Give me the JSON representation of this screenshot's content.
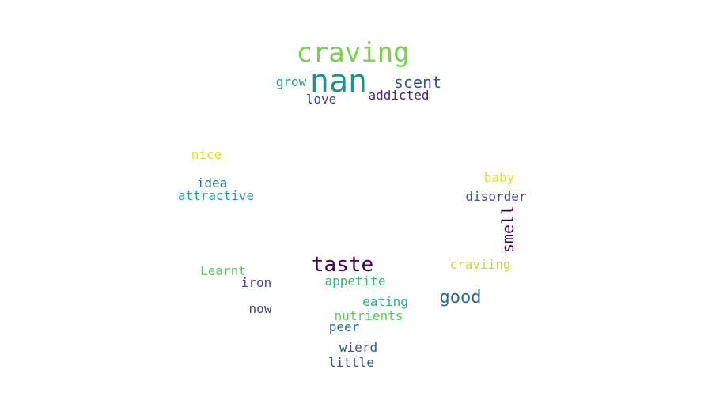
{
  "words": [
    {
      "text": "craving",
      "color": "#7ad151",
      "weight": 34
    },
    {
      "text": "nan",
      "color": "#21918c",
      "weight": 40
    },
    {
      "text": "grow",
      "color": "#2a9d7c",
      "weight": 16
    },
    {
      "text": "scent",
      "color": "#3b528b",
      "weight": 20
    },
    {
      "text": "love",
      "color": "#404688",
      "weight": 16
    },
    {
      "text": "addicted",
      "color": "#482878",
      "weight": 16
    },
    {
      "text": "nice",
      "color": "#dde318",
      "weight": 16
    },
    {
      "text": "idea",
      "color": "#2c728e",
      "weight": 16
    },
    {
      "text": "attractive",
      "color": "#22a884",
      "weight": 16
    },
    {
      "text": "baby",
      "color": "#e5e419",
      "weight": 16
    },
    {
      "text": "disorder",
      "color": "#414487",
      "weight": 16
    },
    {
      "text": "smell",
      "color": "#440154",
      "weight": 20,
      "vertical": true
    },
    {
      "text": "taste",
      "color": "#440154",
      "weight": 26
    },
    {
      "text": "Learnt",
      "color": "#5ec962",
      "weight": 16
    },
    {
      "text": "iron",
      "color": "#3e4a89",
      "weight": 16
    },
    {
      "text": "appetite",
      "color": "#35b779",
      "weight": 16
    },
    {
      "text": "craviing",
      "color": "#c2df23",
      "weight": 16
    },
    {
      "text": "good",
      "color": "#31688e",
      "weight": 22
    },
    {
      "text": "eating",
      "color": "#2eb37c",
      "weight": 16
    },
    {
      "text": "now",
      "color": "#414487",
      "weight": 16
    },
    {
      "text": "nutrients",
      "color": "#5ec962",
      "weight": 16
    },
    {
      "text": "peer",
      "color": "#2c728e",
      "weight": 16
    },
    {
      "text": "wierd",
      "color": "#3b528b",
      "weight": 16
    },
    {
      "text": "little",
      "color": "#3b528b",
      "weight": 16
    }
  ]
}
